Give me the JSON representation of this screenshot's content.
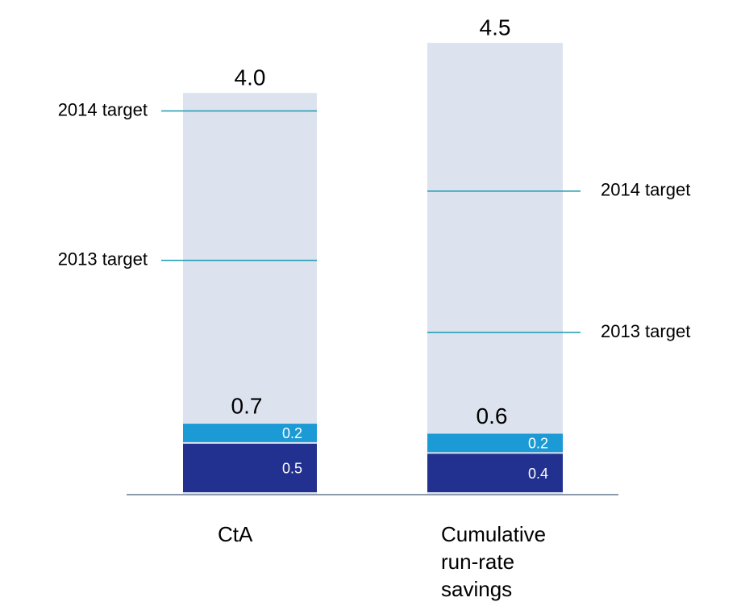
{
  "chart_data": {
    "type": "stacked_bar",
    "categories": [
      "CtA",
      "Cumulative run-rate savings"
    ],
    "series": [
      {
        "color": "#22318f",
        "values": [
          0.5,
          0.4
        ]
      },
      {
        "color": "#1b9ad6",
        "values": [
          0.2,
          0.2
        ]
      }
    ],
    "totals": [
      0.7,
      0.6
    ],
    "target_totals": {
      "color": "#dde3ee",
      "values": [
        4.0,
        4.5
      ],
      "value_labels": [
        "4.0",
        "4.5"
      ]
    },
    "targets": [
      {
        "label": "2014 target",
        "color": "#1a9ab0",
        "values": [
          3.82,
          3.02
        ]
      },
      {
        "label": "2013 target",
        "color": "#1a9ab0",
        "values": [
          2.33,
          1.61
        ]
      }
    ],
    "ylim": [
      0,
      5
    ]
  }
}
